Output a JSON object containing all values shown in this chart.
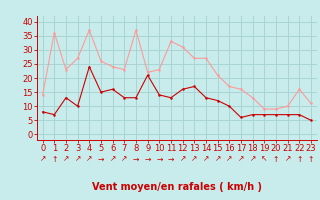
{
  "x": [
    0,
    1,
    2,
    3,
    4,
    5,
    6,
    7,
    8,
    9,
    10,
    11,
    12,
    13,
    14,
    15,
    16,
    17,
    18,
    19,
    20,
    21,
    22,
    23
  ],
  "mean_wind": [
    8,
    7,
    13,
    10,
    24,
    15,
    16,
    13,
    13,
    21,
    14,
    13,
    16,
    17,
    13,
    12,
    10,
    6,
    7,
    7,
    7,
    7,
    7,
    5
  ],
  "gust_wind": [
    14,
    36,
    23,
    27,
    37,
    26,
    24,
    23,
    37,
    22,
    23,
    33,
    31,
    27,
    27,
    21,
    17,
    16,
    13,
    9,
    9,
    10,
    16,
    11
  ],
  "wind_dirs": [
    "↗",
    "↑",
    "↗",
    "↗",
    "↗",
    "→",
    "↗",
    "↗",
    "→",
    "→",
    "→",
    "→",
    "↗",
    "↗",
    "↗",
    "↗",
    "↗",
    "↗",
    "↗",
    "↖",
    "↑",
    "↗",
    "↑",
    "↑"
  ],
  "xlabel": "Vent moyen/en rafales ( km/h )",
  "yticks": [
    0,
    5,
    10,
    15,
    20,
    25,
    30,
    35,
    40
  ],
  "ylim": [
    -2,
    42
  ],
  "xlim": [
    -0.5,
    23.5
  ],
  "bg_color": "#c8ecec",
  "grid_color": "#a8d4d4",
  "mean_color": "#cc0000",
  "gust_color": "#ff9999",
  "xlabel_color": "#cc0000",
  "xlabel_fontsize": 7,
  "tick_fontsize": 6,
  "arrow_fontsize": 5.5
}
